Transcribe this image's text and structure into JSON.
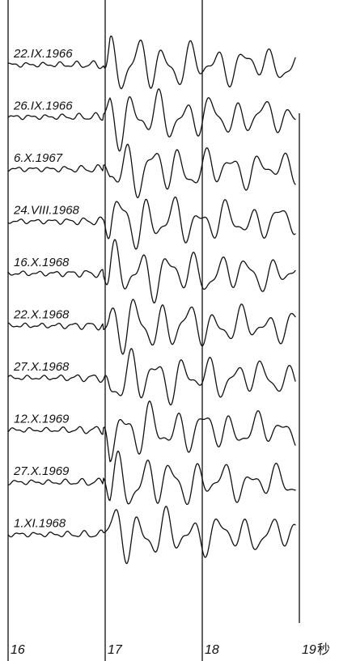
{
  "figure": {
    "traces": [
      {
        "date": "22.IX.1966",
        "seed": 1
      },
      {
        "date": "26.IX.1966",
        "seed": 2
      },
      {
        "date": "6.X.1967",
        "seed": 3
      },
      {
        "date": "24.VIII.1968",
        "seed": 4
      },
      {
        "date": "16.X.1968",
        "seed": 5
      },
      {
        "date": "22.X.1968",
        "seed": 6
      },
      {
        "date": "27.X.1968",
        "seed": 7
      },
      {
        "date": "12.X.1969",
        "seed": 8
      },
      {
        "date": "27.X.1969",
        "seed": 9
      },
      {
        "date": "1.XI.1968",
        "seed": 10
      }
    ],
    "time_axis": {
      "ticks": [
        {
          "value": 16,
          "label": "16"
        },
        {
          "value": 17,
          "label": "17"
        },
        {
          "value": 18,
          "label": "18"
        },
        {
          "value": 19,
          "label": "19"
        }
      ],
      "unit": "秒"
    },
    "colors": {
      "ink": "#111111",
      "background": "#ffffff"
    }
  }
}
